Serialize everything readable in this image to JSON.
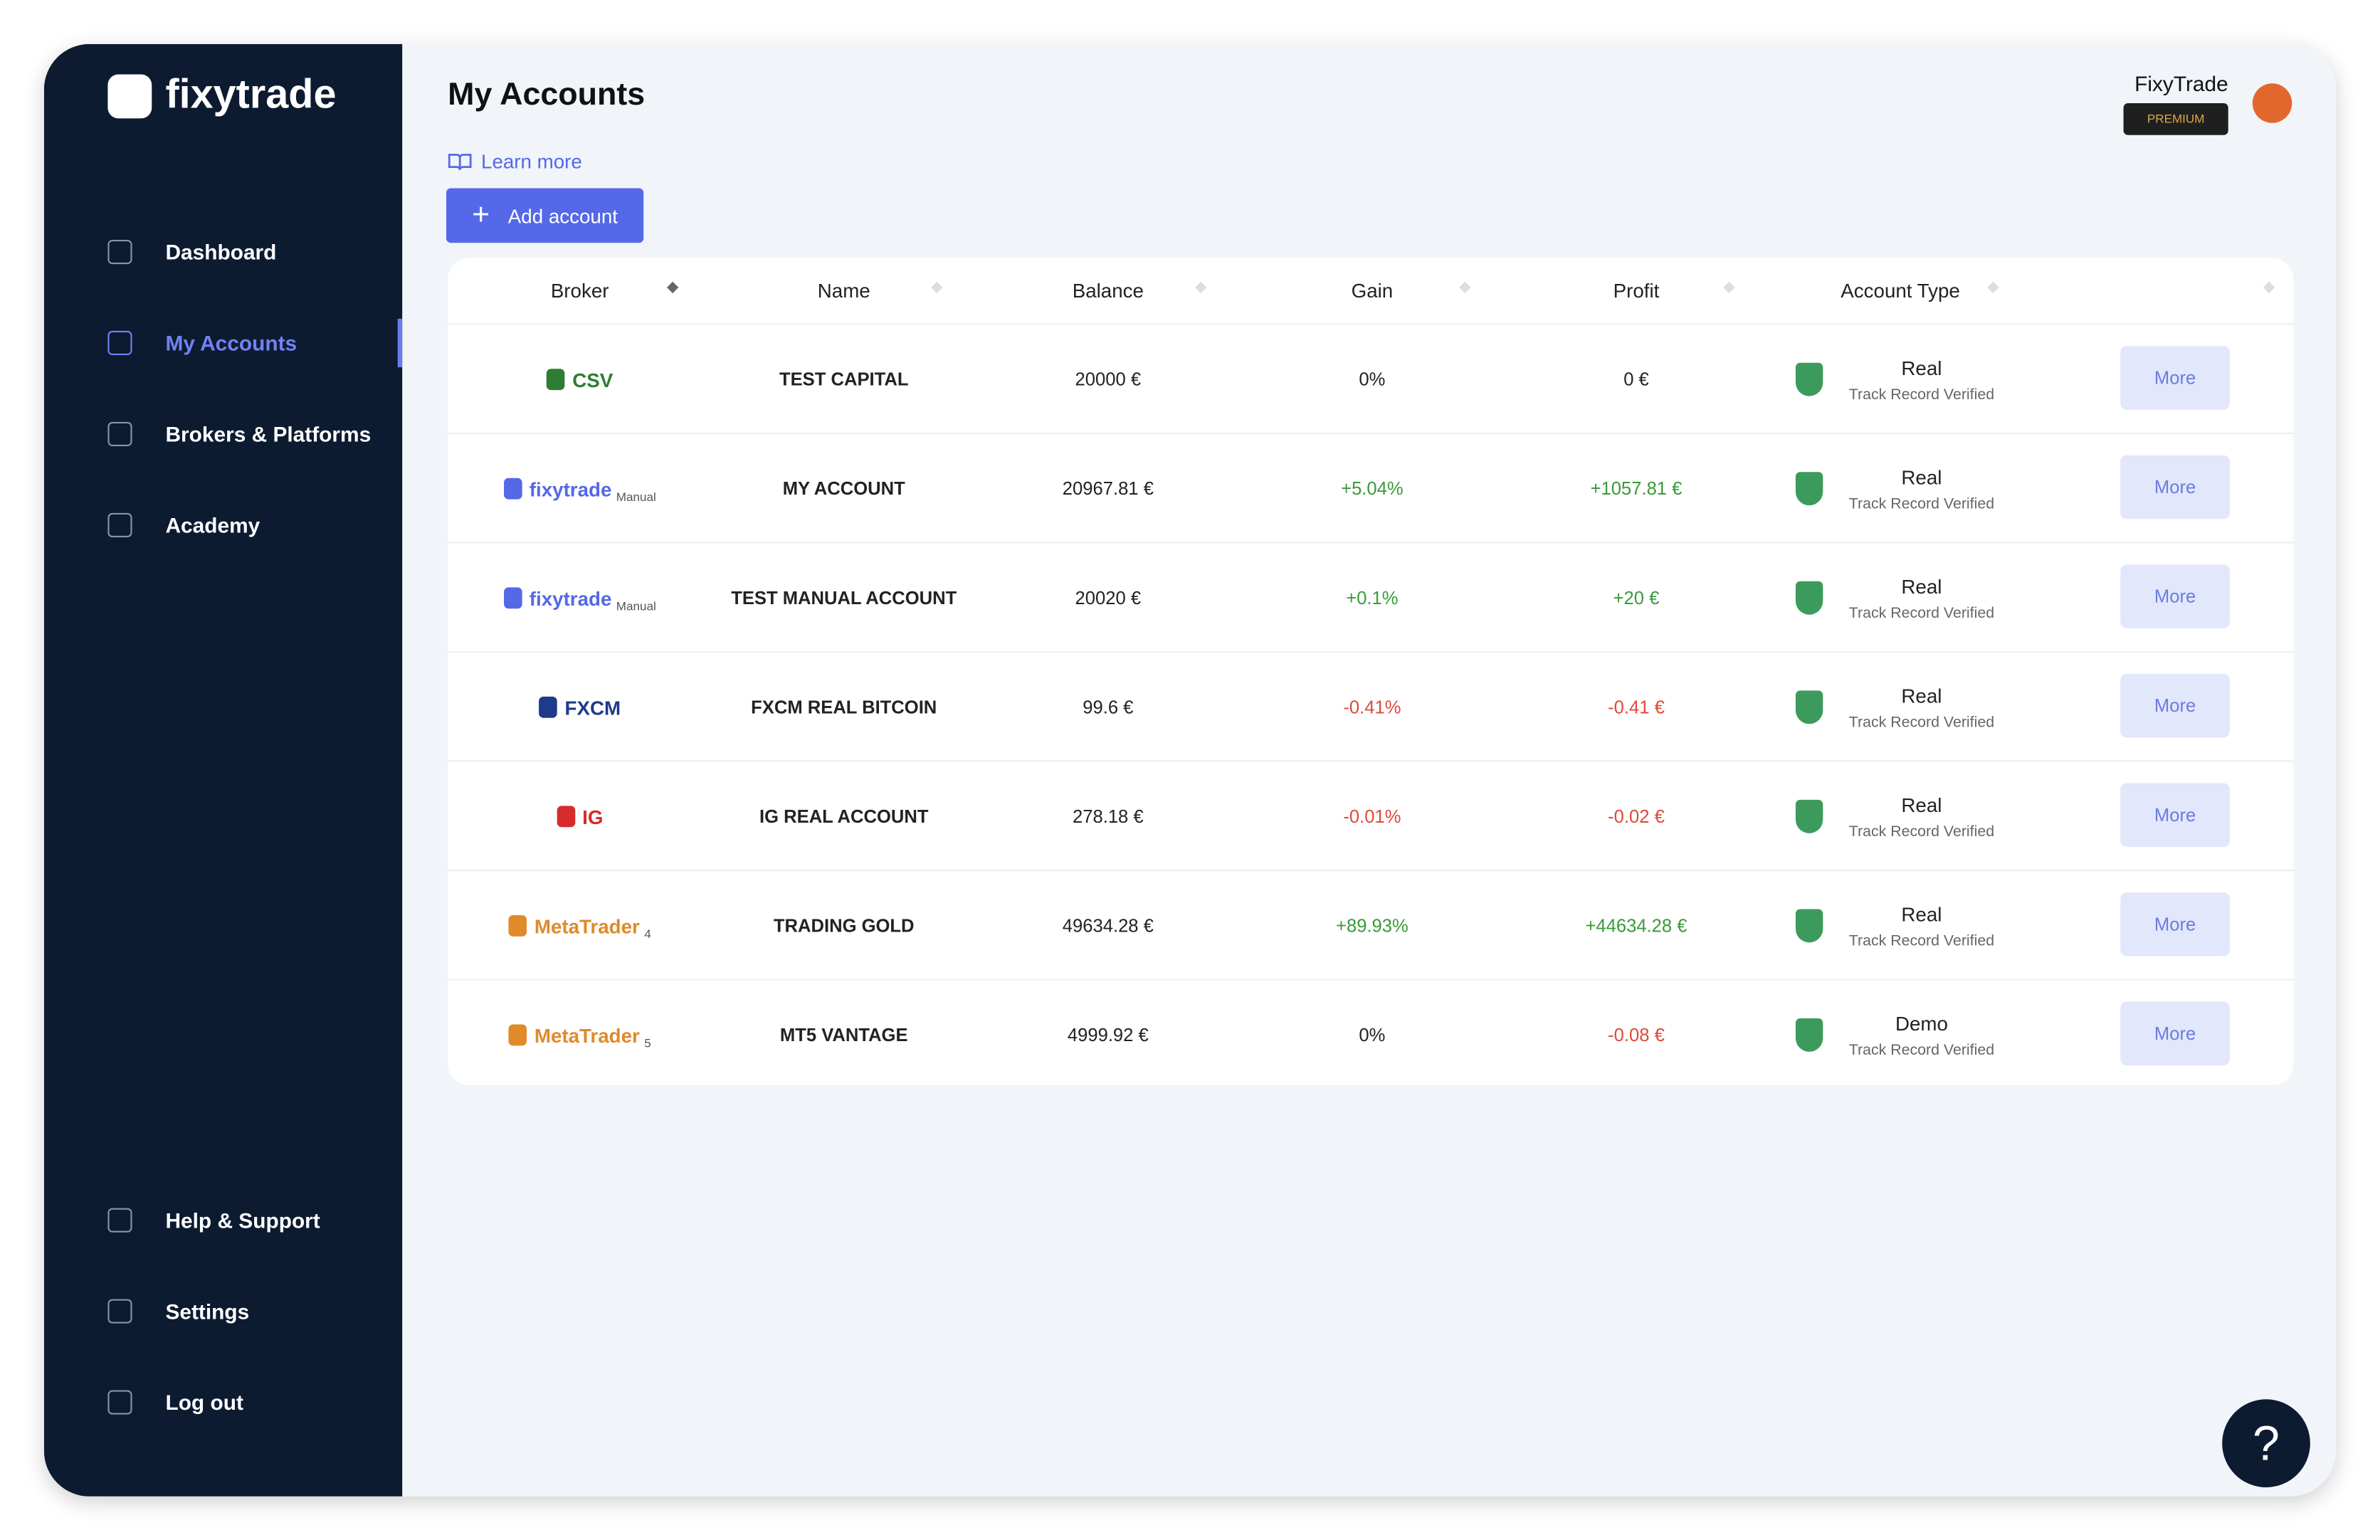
{
  "brand": "fixytrade",
  "nav": [
    "Dashboard",
    "My Accounts",
    "Brokers & Platforms",
    "Academy"
  ],
  "nav_bottom": [
    "Help & Support",
    "Settings",
    "Log out"
  ],
  "header": {
    "title": "My Accounts",
    "learn_more": "Learn more",
    "add_account": "Add account",
    "user": "FixyTrade",
    "badge": "PREMIUM"
  },
  "table": {
    "columns": [
      "Broker",
      "Name",
      "Balance",
      "Gain",
      "Profit",
      "Account Type"
    ],
    "rows": [
      {
        "broker": {
          "logo": "CSV",
          "color": "#2e7d32"
        },
        "name": "TEST CAPITAL",
        "balance": "20000 €",
        "gain": "0%",
        "profit": "0 €",
        "type": "Real",
        "status": "Track Record Verified",
        "action": "More"
      },
      {
        "broker": {
          "logo": "fixytrade",
          "sub": "Manual",
          "color": "#5468e8"
        },
        "name": "MY ACCOUNT",
        "balance": "20967.81 €",
        "gain": "+5.04%",
        "profit": "+1057.81 €",
        "type": "Real",
        "status": "Track Record Verified",
        "action": "More"
      },
      {
        "broker": {
          "logo": "fixytrade",
          "sub": "Manual",
          "color": "#5468e8"
        },
        "name": "TEST MANUAL ACCOUNT",
        "balance": "20020 €",
        "gain": "+0.1%",
        "profit": "+20 €",
        "type": "Real",
        "status": "Track Record Verified",
        "action": "More"
      },
      {
        "broker": {
          "logo": "FXCM",
          "color": "#1e3a8a"
        },
        "name": "FXCM REAL BITCOIN",
        "balance": "99.6 €",
        "gain": "-0.41%",
        "profit": "-0.41 €",
        "type": "Real",
        "status": "Track Record Verified",
        "action": "More"
      },
      {
        "broker": {
          "logo": "IG",
          "color": "#d62b2b"
        },
        "name": "IG REAL ACCOUNT",
        "balance": "278.18 €",
        "gain": "-0.01%",
        "profit": "-0.02 €",
        "type": "Real",
        "status": "Track Record Verified",
        "action": "More"
      },
      {
        "broker": {
          "logo": "MetaTrader",
          "sub": "4",
          "color": "#e08a2a"
        },
        "name": "TRADING GOLD",
        "balance": "49634.28 €",
        "gain": "+89.93%",
        "profit": "+44634.28 €",
        "type": "Real",
        "status": "Track Record Verified",
        "action": "More"
      },
      {
        "broker": {
          "logo": "MetaTrader",
          "sub": "5",
          "color": "#e08a2a"
        },
        "name": "MT5 VANTAGE",
        "balance": "4999.92 €",
        "gain": "0%",
        "profit": "-0.08 €",
        "type": "Demo",
        "status": "Track Record Verified",
        "action": "More"
      }
    ]
  },
  "help": "?"
}
